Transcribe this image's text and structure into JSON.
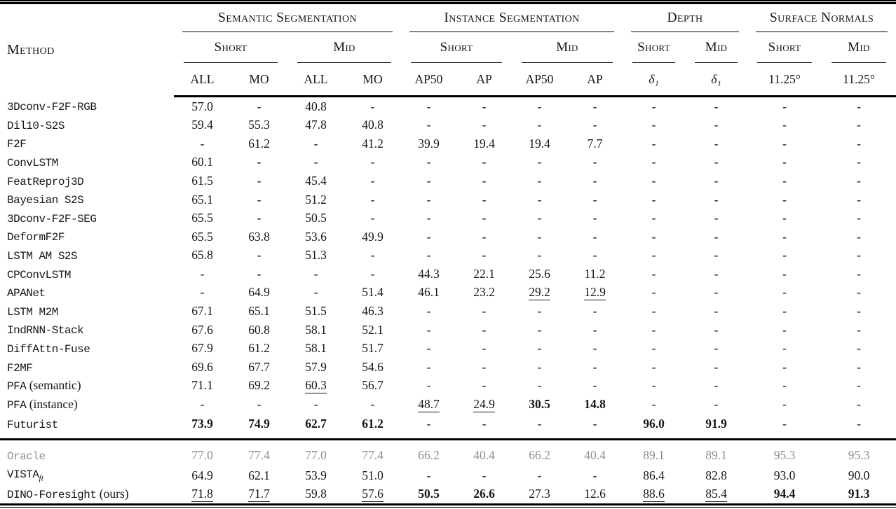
{
  "table": {
    "method_header": "Method",
    "colors": {
      "text": "#161616",
      "muted": "#8f8f8f",
      "rule": "#000000"
    },
    "header": {
      "groups": [
        {
          "label": "Semantic Segmentation",
          "subs": [
            {
              "label": "Short",
              "cols": [
                "ALL",
                "MO"
              ]
            },
            {
              "label": "Mid",
              "cols": [
                "ALL",
                "MO"
              ]
            }
          ]
        },
        {
          "label": "Instance Segmentation",
          "subs": [
            {
              "label": "Short",
              "cols": [
                "AP50",
                "AP"
              ]
            },
            {
              "label": "Mid",
              "cols": [
                "AP50",
                "AP"
              ]
            }
          ]
        },
        {
          "label": "Depth",
          "subs": [
            {
              "label": "Short",
              "cols": [
                "δ₁"
              ]
            },
            {
              "label": "Mid",
              "cols": [
                "δ₁"
              ]
            }
          ]
        },
        {
          "label": "Surface Normals",
          "subs": [
            {
              "label": "Short",
              "cols": [
                "11.25°"
              ]
            },
            {
              "label": "Mid",
              "cols": [
                "11.25°"
              ]
            }
          ]
        }
      ]
    },
    "rows": [
      {
        "name": "3Dconv-F2F-RGB",
        "values": [
          "57.0",
          "-",
          "40.8",
          "-",
          "-",
          "-",
          "-",
          "-",
          "-",
          "-",
          "-",
          "-"
        ]
      },
      {
        "name": "Dil10-S2S",
        "values": [
          "59.4",
          "55.3",
          "47.8",
          "40.8",
          "-",
          "-",
          "-",
          "-",
          "-",
          "-",
          "-",
          "-"
        ]
      },
      {
        "name": "F2F",
        "values": [
          "-",
          "61.2",
          "-",
          "41.2",
          "39.9",
          "19.4",
          "19.4",
          "7.7",
          "-",
          "-",
          "-",
          "-"
        ]
      },
      {
        "name": "ConvLSTM",
        "values": [
          "60.1",
          "-",
          "-",
          "-",
          "-",
          "-",
          "-",
          "-",
          "-",
          "-",
          "-",
          "-"
        ]
      },
      {
        "name": "FeatReproj3D",
        "values": [
          "61.5",
          "-",
          "45.4",
          "-",
          "-",
          "-",
          "-",
          "-",
          "-",
          "-",
          "-",
          "-"
        ]
      },
      {
        "name": "Bayesian S2S",
        "values": [
          "65.1",
          "-",
          "51.2",
          "-",
          "-",
          "-",
          "-",
          "-",
          "-",
          "-",
          "-",
          "-"
        ]
      },
      {
        "name": "3Dconv-F2F-SEG",
        "values": [
          "65.5",
          "-",
          "50.5",
          "-",
          "-",
          "-",
          "-",
          "-",
          "-",
          "-",
          "-",
          "-"
        ]
      },
      {
        "name": "DeformF2F",
        "values": [
          "65.5",
          "63.8",
          "53.6",
          "49.9",
          "-",
          "-",
          "-",
          "-",
          "-",
          "-",
          "-",
          "-"
        ]
      },
      {
        "name": "LSTM AM S2S",
        "values": [
          "65.8",
          "-",
          "51.3",
          "-",
          "-",
          "-",
          "-",
          "-",
          "-",
          "-",
          "-",
          "-"
        ]
      },
      {
        "name": "CPConvLSTM",
        "values": [
          "-",
          "-",
          "-",
          "-",
          "44.3",
          "22.1",
          "25.6",
          "11.2",
          "-",
          "-",
          "-",
          "-"
        ]
      },
      {
        "name": "APANet",
        "values": [
          "-",
          "64.9",
          "-",
          "51.4",
          "46.1",
          "23.2",
          "29.2",
          "12.9",
          "-",
          "-",
          "-",
          "-"
        ],
        "under": [
          6,
          7
        ]
      },
      {
        "name": "LSTM M2M",
        "values": [
          "67.1",
          "65.1",
          "51.5",
          "46.3",
          "-",
          "-",
          "-",
          "-",
          "-",
          "-",
          "-",
          "-"
        ]
      },
      {
        "name": "IndRNN-Stack",
        "values": [
          "67.6",
          "60.8",
          "58.1",
          "52.1",
          "-",
          "-",
          "-",
          "-",
          "-",
          "-",
          "-",
          "-"
        ]
      },
      {
        "name": "DiffAttn-Fuse",
        "values": [
          "67.9",
          "61.2",
          "58.1",
          "51.7",
          "-",
          "-",
          "-",
          "-",
          "-",
          "-",
          "-",
          "-"
        ]
      },
      {
        "name": "F2MF",
        "values": [
          "69.6",
          "67.7",
          "57.9",
          "54.6",
          "-",
          "-",
          "-",
          "-",
          "-",
          "-",
          "-",
          "-"
        ]
      },
      {
        "name": "PFA",
        "suffix": "(semantic)",
        "values": [
          "71.1",
          "69.2",
          "60.3",
          "56.7",
          "-",
          "-",
          "-",
          "-",
          "-",
          "-",
          "-",
          "-"
        ],
        "under": [
          2
        ]
      },
      {
        "name": "PFA",
        "suffix": "(instance)",
        "values": [
          "-",
          "-",
          "-",
          "-",
          "48.7",
          "24.9",
          "30.5",
          "14.8",
          "-",
          "-",
          "-",
          "-"
        ],
        "under": [
          4,
          5
        ],
        "bold": [
          6,
          7
        ]
      },
      {
        "name": "Futurist",
        "values": [
          "73.9",
          "74.9",
          "62.7",
          "61.2",
          "-",
          "-",
          "-",
          "-",
          "96.0",
          "91.9",
          "-",
          "-"
        ],
        "bold": [
          0,
          1,
          2,
          3,
          8,
          9
        ]
      }
    ],
    "bottom_rows": [
      {
        "name": "Oracle",
        "gray": true,
        "values": [
          "77.0",
          "77.4",
          "77.0",
          "77.4",
          "66.2",
          "40.4",
          "66.2",
          "40.4",
          "89.1",
          "89.1",
          "95.3",
          "95.3"
        ]
      },
      {
        "name": "VISTA",
        "sub": "ft",
        "values": [
          "64.9",
          "62.1",
          "53.9",
          "51.0",
          "-",
          "-",
          "-",
          "-",
          "86.4",
          "82.8",
          "93.0",
          "90.0"
        ]
      },
      {
        "name": "DINO-Foresight",
        "suffix": "(ours)",
        "values": [
          "71.8",
          "71.7",
          "59.8",
          "57.6",
          "50.5",
          "26.6",
          "27.3",
          "12.6",
          "88.6",
          "85.4",
          "94.4",
          "91.3"
        ],
        "under": [
          0,
          1,
          3,
          8,
          9
        ],
        "bold": [
          4,
          5,
          10,
          11
        ]
      }
    ]
  }
}
